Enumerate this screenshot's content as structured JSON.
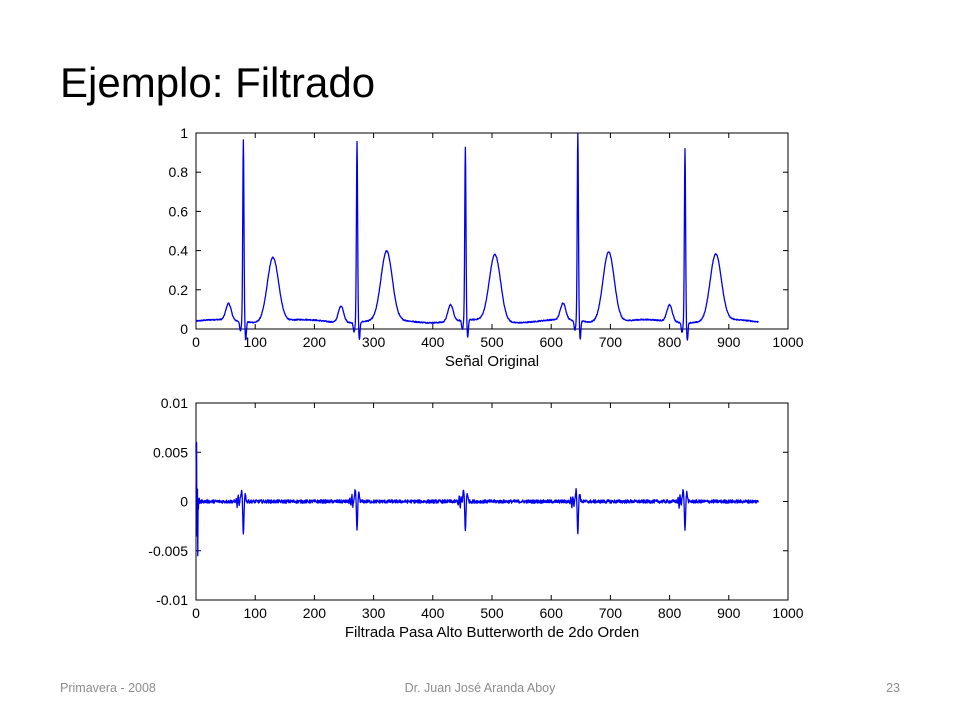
{
  "slide": {
    "title": "Ejemplo: Filtrado",
    "footer_left": "Primavera - 2008",
    "footer_center": "Dr. Juan José Aranda Aboy",
    "footer_right": "23"
  },
  "colors": {
    "line": "#0000ee",
    "axes": "#000000",
    "background": "#ffffff"
  },
  "chart_data": [
    {
      "type": "line",
      "title": "",
      "xlabel": "Señal Original",
      "ylabel": "",
      "xlim": [
        0,
        1000
      ],
      "ylim": [
        0,
        1
      ],
      "xticks": [
        0,
        100,
        200,
        300,
        400,
        500,
        600,
        700,
        800,
        900,
        1000
      ],
      "yticks": [
        0,
        0.2,
        0.4,
        0.6,
        0.8,
        1
      ],
      "ytick_labels": [
        "0",
        "0.2",
        "0.4",
        "0.6",
        "0.8",
        "1"
      ],
      "grid": false,
      "x_extent": [
        0,
        950
      ],
      "baseline": 0.04,
      "beats": [
        {
          "p": 55,
          "r": 80,
          "t": 130,
          "r_peak": 0.97,
          "t_peak": 0.37
        },
        {
          "p": 245,
          "r": 272,
          "t": 322,
          "r_peak": 0.96,
          "t_peak": 0.39
        },
        {
          "p": 430,
          "r": 455,
          "t": 505,
          "r_peak": 0.92,
          "t_peak": 0.38
        },
        {
          "p": 620,
          "r": 645,
          "t": 697,
          "r_peak": 1.0,
          "t_peak": 0.4
        },
        {
          "p": 800,
          "r": 826,
          "t": 878,
          "r_peak": 0.93,
          "t_peak": 0.38
        }
      ]
    },
    {
      "type": "line",
      "title": "",
      "xlabel": "Filtrada Pasa Alto Butterworth de 2do Orden",
      "ylabel": "",
      "xlim": [
        0,
        1000
      ],
      "ylim": [
        -0.01,
        0.01
      ],
      "xticks": [
        0,
        100,
        200,
        300,
        400,
        500,
        600,
        700,
        800,
        900,
        1000
      ],
      "yticks": [
        -0.01,
        -0.005,
        0,
        0.005,
        0.01
      ],
      "ytick_labels": [
        "-0.01",
        "-0.005",
        "0",
        "0.005",
        "0.01"
      ],
      "grid": false,
      "x_extent": [
        0,
        950
      ],
      "initial_transient": {
        "max": 0.006,
        "min": -0.0055
      },
      "beats": [
        {
          "x": 80,
          "max": 0.0011,
          "min": -0.0034
        },
        {
          "x": 272,
          "max": 0.0012,
          "min": -0.003
        },
        {
          "x": 455,
          "max": 0.0012,
          "min": -0.003
        },
        {
          "x": 645,
          "max": 0.0012,
          "min": -0.0033
        },
        {
          "x": 826,
          "max": 0.0013,
          "min": -0.003
        }
      ]
    }
  ]
}
